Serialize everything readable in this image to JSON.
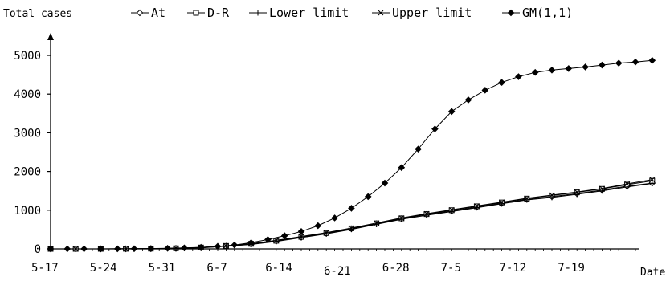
{
  "chart_data": {
    "type": "line",
    "ylabel": "Total cases",
    "xlabel": "Date",
    "ylim": [
      0,
      5000
    ],
    "yticks": [
      0,
      1000,
      2000,
      3000,
      4000,
      5000
    ],
    "xlim": [
      0,
      73
    ],
    "xtick_labels": [
      "5-17",
      "5-24",
      "5-31",
      "6-7",
      "6-14",
      "6-21",
      "6-28",
      "7-5",
      "7-12",
      "7-19"
    ],
    "grid": false,
    "legend_position": "top",
    "series": [
      {
        "name": "At",
        "marker": "diamond-open",
        "x": [
          0,
          3,
          6,
          9,
          12,
          15,
          18,
          21,
          24,
          27,
          30,
          33,
          36,
          39,
          42,
          45,
          48,
          51,
          54,
          57,
          60,
          63,
          66,
          69,
          72
        ],
        "y": [
          0,
          0,
          1,
          2,
          5,
          12,
          30,
          70,
          120,
          200,
          300,
          400,
          520,
          650,
          780,
          890,
          980,
          1080,
          1180,
          1280,
          1350,
          1430,
          1520,
          1620,
          1700
        ]
      },
      {
        "name": "D-R",
        "marker": "square-open",
        "x": [
          0,
          3,
          6,
          9,
          12,
          15,
          18,
          21,
          24,
          27,
          30,
          33,
          36,
          39,
          42,
          45,
          48,
          51,
          54,
          57,
          60,
          63,
          66,
          69,
          72
        ],
        "y": [
          0,
          0,
          1,
          3,
          6,
          15,
          35,
          75,
          130,
          210,
          310,
          410,
          530,
          660,
          790,
          900,
          1000,
          1100,
          1200,
          1300,
          1380,
          1460,
          1550,
          1660,
          1760
        ]
      },
      {
        "name": "Lower limit",
        "marker": "plus",
        "x": [
          0,
          3,
          6,
          9,
          12,
          15,
          18,
          21,
          24,
          27,
          30,
          33,
          36,
          39,
          42,
          45,
          48,
          51,
          54,
          57,
          60,
          63,
          66,
          69,
          72
        ],
        "y": [
          0,
          0,
          1,
          2,
          5,
          11,
          28,
          66,
          115,
          190,
          290,
          390,
          505,
          635,
          765,
          870,
          965,
          1065,
          1165,
          1265,
          1330,
          1410,
          1500,
          1600,
          1690
        ]
      },
      {
        "name": "Upper limit",
        "marker": "cross",
        "x": [
          0,
          3,
          6,
          9,
          12,
          15,
          18,
          21,
          24,
          27,
          30,
          33,
          36,
          39,
          42,
          45,
          48,
          51,
          54,
          57,
          60,
          63,
          66,
          69,
          72
        ],
        "y": [
          0,
          0,
          1,
          3,
          6,
          16,
          38,
          80,
          135,
          220,
          320,
          420,
          540,
          670,
          800,
          910,
          1010,
          1110,
          1210,
          1310,
          1390,
          1470,
          1560,
          1680,
          1790
        ]
      },
      {
        "name": "GM(1,1)",
        "marker": "diamond-filled",
        "x": [
          0,
          2,
          4,
          6,
          8,
          10,
          12,
          14,
          16,
          18,
          20,
          22,
          24,
          26,
          28,
          30,
          32,
          34,
          36,
          38,
          40,
          42,
          44,
          46,
          48,
          50,
          52,
          54,
          56,
          58,
          60,
          62,
          64,
          66,
          68,
          70,
          72
        ],
        "y": [
          0,
          0,
          0,
          0,
          1,
          3,
          8,
          15,
          25,
          40,
          65,
          100,
          160,
          240,
          340,
          450,
          600,
          800,
          1050,
          1350,
          1700,
          2100,
          2580,
          3100,
          3550,
          3850,
          4100,
          4300,
          4450,
          4560,
          4620,
          4660,
          4700,
          4750,
          4800,
          4830,
          4870
        ]
      }
    ]
  }
}
